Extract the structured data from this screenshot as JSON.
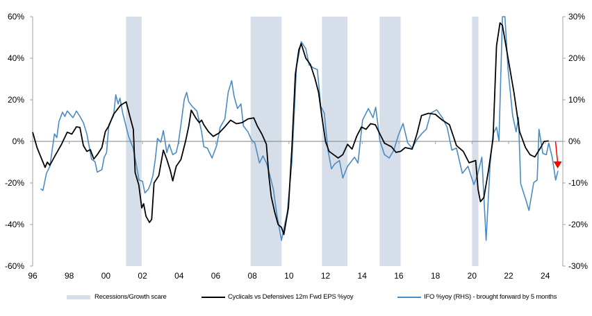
{
  "chart_data": {
    "type": "line",
    "title": "",
    "xlabel": "",
    "ylabel": "",
    "xlim": [
      1996.0,
      2024.96
    ],
    "ylim_left": [
      -60,
      60
    ],
    "ylim_right": [
      -30,
      30
    ],
    "x_ticks": [
      1996,
      1998,
      2000,
      2002,
      2004,
      2006,
      2008,
      2010,
      2012,
      2014,
      2016,
      2018,
      2020,
      2022,
      2024
    ],
    "x_tick_labels": [
      "96",
      "98",
      "00",
      "02",
      "04",
      "06",
      "08",
      "10",
      "12",
      "14",
      "16",
      "18",
      "20",
      "22",
      "24"
    ],
    "y_left_ticks": [
      60,
      40,
      20,
      0,
      -20,
      -40,
      -60
    ],
    "y_left_tick_labels": [
      "60%",
      "40%",
      "20%",
      "0%",
      "-20%",
      "-40%",
      "-60%"
    ],
    "y_right_ticks": [
      30,
      20,
      10,
      0,
      -10,
      -20,
      -30
    ],
    "y_right_tick_labels": [
      "30%",
      "20%",
      "10%",
      "0%",
      "-10%",
      "-20%",
      "-30%"
    ],
    "legend_position": "bottom",
    "recessions": {
      "name": "Recessions/Growth scare",
      "color": "#d6dfe9",
      "periods": [
        [
          2001.1,
          2001.95
        ],
        [
          2007.9,
          2009.6
        ],
        [
          2011.8,
          2013.2
        ],
        [
          2014.95,
          2016.1
        ],
        [
          2020.0,
          2020.35
        ]
      ]
    },
    "series": [
      {
        "name": "Cyclicals vs Defensives 12m Fwd EPS %yoy",
        "axis": "left",
        "color": "#000000",
        "points": [
          [
            1996.0,
            4.4
          ],
          [
            1996.24,
            -3
          ],
          [
            1996.47,
            -8
          ],
          [
            1996.68,
            -12.5
          ],
          [
            1996.8,
            -10
          ],
          [
            1996.94,
            -11.5
          ],
          [
            1997.25,
            -6.5
          ],
          [
            1997.57,
            -1.5
          ],
          [
            1997.89,
            4.4
          ],
          [
            1998.14,
            3.5
          ],
          [
            1998.39,
            7
          ],
          [
            1998.58,
            6.7
          ],
          [
            1998.77,
            -2
          ],
          [
            1998.96,
            -4.8
          ],
          [
            1999.15,
            -4
          ],
          [
            1999.34,
            -8.5
          ],
          [
            1999.53,
            -6.4
          ],
          [
            1999.78,
            -3
          ],
          [
            1999.97,
            4.7
          ],
          [
            2000.16,
            7.4
          ],
          [
            2000.42,
            13
          ],
          [
            2000.8,
            17.4
          ],
          [
            2001.11,
            19
          ],
          [
            2001.3,
            12.4
          ],
          [
            2001.5,
            5.8
          ],
          [
            2001.6,
            -15
          ],
          [
            2001.8,
            -21
          ],
          [
            2001.96,
            -32
          ],
          [
            2002.06,
            -30
          ],
          [
            2002.19,
            -36
          ],
          [
            2002.38,
            -39
          ],
          [
            2002.5,
            -37.5
          ],
          [
            2002.63,
            -20
          ],
          [
            2002.89,
            -16.5
          ],
          [
            2003.14,
            -4.2
          ],
          [
            2003.33,
            -8.7
          ],
          [
            2003.52,
            -14
          ],
          [
            2003.65,
            -19
          ],
          [
            2003.84,
            -12
          ],
          [
            2004.1,
            -8.7
          ],
          [
            2004.35,
            0
          ],
          [
            2004.53,
            7.4
          ],
          [
            2004.66,
            15
          ],
          [
            2004.91,
            11.3
          ],
          [
            2005.1,
            9
          ],
          [
            2005.23,
            10.2
          ],
          [
            2005.35,
            8
          ],
          [
            2005.6,
            4.7
          ],
          [
            2005.86,
            2.4
          ],
          [
            2006.18,
            4
          ],
          [
            2006.5,
            7
          ],
          [
            2006.81,
            10.2
          ],
          [
            2007.13,
            8.5
          ],
          [
            2007.44,
            9
          ],
          [
            2007.76,
            10.8
          ],
          [
            2008.08,
            11.3
          ],
          [
            2008.27,
            7.4
          ],
          [
            2008.52,
            3.5
          ],
          [
            2008.77,
            -1.4
          ],
          [
            2008.9,
            -16.4
          ],
          [
            2009.03,
            -26.4
          ],
          [
            2009.22,
            -34
          ],
          [
            2009.41,
            -40
          ],
          [
            2009.59,
            -41.4
          ],
          [
            2009.72,
            -44.8
          ],
          [
            2009.97,
            -32
          ],
          [
            2010.16,
            -3
          ],
          [
            2010.35,
            32.4
          ],
          [
            2010.54,
            44
          ],
          [
            2010.67,
            47
          ],
          [
            2010.92,
            40
          ],
          [
            2011.17,
            37
          ],
          [
            2011.43,
            30
          ],
          [
            2011.62,
            23.5
          ],
          [
            2011.81,
            11.3
          ],
          [
            2012.0,
            0
          ],
          [
            2012.19,
            -4.8
          ],
          [
            2012.44,
            -6.4
          ],
          [
            2012.69,
            -8
          ],
          [
            2012.94,
            -6.4
          ],
          [
            2013.2,
            -1.4
          ],
          [
            2013.45,
            -3.7
          ],
          [
            2013.7,
            2.4
          ],
          [
            2013.96,
            6.9
          ],
          [
            2014.21,
            5.8
          ],
          [
            2014.46,
            8.5
          ],
          [
            2014.72,
            8
          ],
          [
            2014.97,
            3.5
          ],
          [
            2015.22,
            -0.9
          ],
          [
            2015.6,
            -2.6
          ],
          [
            2015.85,
            -5.3
          ],
          [
            2016.1,
            -4.8
          ],
          [
            2016.35,
            -3
          ],
          [
            2016.73,
            -3.7
          ],
          [
            2016.99,
            3.5
          ],
          [
            2017.24,
            12.4
          ],
          [
            2017.62,
            13.5
          ],
          [
            2018.0,
            13
          ],
          [
            2018.38,
            10.2
          ],
          [
            2018.77,
            8
          ],
          [
            2019.15,
            -2
          ],
          [
            2019.52,
            -4.8
          ],
          [
            2019.84,
            -10.3
          ],
          [
            2020.2,
            -9.2
          ],
          [
            2020.33,
            -23
          ],
          [
            2020.46,
            -29
          ],
          [
            2020.65,
            -27
          ],
          [
            2020.9,
            -14
          ],
          [
            2021.15,
            1.3
          ],
          [
            2021.34,
            46
          ],
          [
            2021.53,
            57
          ],
          [
            2021.66,
            55.8
          ],
          [
            2021.97,
            40
          ],
          [
            2022.29,
            23.5
          ],
          [
            2022.6,
            4.7
          ],
          [
            2022.92,
            -3
          ],
          [
            2023.17,
            -6.4
          ],
          [
            2023.43,
            -7.5
          ],
          [
            2023.75,
            -3
          ],
          [
            2023.94,
            0
          ],
          [
            2024.19,
            0.2
          ]
        ]
      },
      {
        "name": "IFO %yoy (RHS) - brought forward by 5 months",
        "axis": "right",
        "color": "#4a8bc4",
        "points": [
          [
            1996.43,
            -11.4
          ],
          [
            1996.56,
            -11.8
          ],
          [
            1996.75,
            -7.7
          ],
          [
            1996.94,
            -6
          ],
          [
            1997.19,
            1.8
          ],
          [
            1997.32,
            0.9
          ],
          [
            1997.44,
            4.8
          ],
          [
            1997.63,
            7
          ],
          [
            1997.76,
            6
          ],
          [
            1997.89,
            7.3
          ],
          [
            1998.2,
            5.7
          ],
          [
            1998.39,
            7.3
          ],
          [
            1998.58,
            6
          ],
          [
            1998.77,
            4.5
          ],
          [
            1998.96,
            1.8
          ],
          [
            1999.22,
            -4.3
          ],
          [
            1999.41,
            -4.9
          ],
          [
            1999.53,
            -7.4
          ],
          [
            1999.78,
            -6.8
          ],
          [
            1999.91,
            -3.8
          ],
          [
            2000.04,
            -2.7
          ],
          [
            2000.16,
            4
          ],
          [
            2000.42,
            6.2
          ],
          [
            2000.54,
            11.2
          ],
          [
            2000.67,
            9
          ],
          [
            2000.77,
            10.4
          ],
          [
            2000.92,
            6.8
          ],
          [
            2001.05,
            4.5
          ],
          [
            2001.24,
            1.2
          ],
          [
            2001.49,
            -1.6
          ],
          [
            2001.68,
            -6
          ],
          [
            2001.81,
            -9.3
          ],
          [
            2002.0,
            -9.6
          ],
          [
            2002.13,
            -12.4
          ],
          [
            2002.32,
            -11.5
          ],
          [
            2002.44,
            -10.2
          ],
          [
            2002.57,
            -8.2
          ],
          [
            2002.7,
            -4.3
          ],
          [
            2002.82,
            0.7
          ],
          [
            2003.0,
            -0.2
          ],
          [
            2003.14,
            2.6
          ],
          [
            2003.33,
            -2.7
          ],
          [
            2003.46,
            -0.7
          ],
          [
            2003.65,
            -3.2
          ],
          [
            2003.84,
            -2.7
          ],
          [
            2003.96,
            -0.4
          ],
          [
            2004.1,
            4
          ],
          [
            2004.28,
            10.1
          ],
          [
            2004.41,
            11.8
          ],
          [
            2004.53,
            9.5
          ],
          [
            2004.72,
            8.4
          ],
          [
            2004.97,
            7.3
          ],
          [
            2005.23,
            2.3
          ],
          [
            2005.35,
            -1.3
          ],
          [
            2005.54,
            -1.6
          ],
          [
            2005.8,
            -4
          ],
          [
            2006.05,
            -1
          ],
          [
            2006.24,
            3.4
          ],
          [
            2006.5,
            5.4
          ],
          [
            2006.68,
            11.8
          ],
          [
            2006.87,
            14.6
          ],
          [
            2007.0,
            10.9
          ],
          [
            2007.19,
            7.9
          ],
          [
            2007.38,
            9
          ],
          [
            2007.51,
            3.7
          ],
          [
            2007.76,
            2.3
          ],
          [
            2007.95,
            0.4
          ],
          [
            2008.14,
            -0.4
          ],
          [
            2008.39,
            -5.2
          ],
          [
            2008.58,
            -3.5
          ],
          [
            2008.77,
            -5.2
          ],
          [
            2008.96,
            -8.2
          ],
          [
            2009.15,
            -11.6
          ],
          [
            2009.34,
            -17.7
          ],
          [
            2009.59,
            -23.8
          ],
          [
            2009.91,
            -17
          ],
          [
            2010.16,
            -4.9
          ],
          [
            2010.41,
            17.9
          ],
          [
            2010.67,
            24
          ],
          [
            2010.92,
            22.3
          ],
          [
            2011.1,
            18.4
          ],
          [
            2011.36,
            17.6
          ],
          [
            2011.55,
            17.3
          ],
          [
            2011.74,
            8.4
          ],
          [
            2011.93,
            6.8
          ],
          [
            2012.13,
            -2.1
          ],
          [
            2012.32,
            -6.6
          ],
          [
            2012.51,
            -5.4
          ],
          [
            2012.76,
            -4.6
          ],
          [
            2012.94,
            -8.8
          ],
          [
            2013.2,
            -6
          ],
          [
            2013.58,
            -3.8
          ],
          [
            2013.77,
            -5.2
          ],
          [
            2014.02,
            5.1
          ],
          [
            2014.34,
            7.9
          ],
          [
            2014.59,
            5.7
          ],
          [
            2014.74,
            8.2
          ],
          [
            2014.97,
            0.1
          ],
          [
            2015.22,
            -3.2
          ],
          [
            2015.48,
            -4
          ],
          [
            2015.73,
            -2.1
          ],
          [
            2015.98,
            1.5
          ],
          [
            2016.23,
            4.3
          ],
          [
            2016.49,
            -0.4
          ],
          [
            2016.73,
            -1.6
          ],
          [
            2016.99,
            0.4
          ],
          [
            2017.24,
            1.8
          ],
          [
            2017.5,
            2.9
          ],
          [
            2017.75,
            6.8
          ],
          [
            2018.07,
            7.6
          ],
          [
            2018.38,
            5.7
          ],
          [
            2018.64,
            3.4
          ],
          [
            2018.9,
            -2.1
          ],
          [
            2019.15,
            -1.6
          ],
          [
            2019.47,
            -7.7
          ],
          [
            2019.78,
            -6
          ],
          [
            2020.1,
            -10.4
          ],
          [
            2020.29,
            -8.2
          ],
          [
            2020.54,
            -3.8
          ],
          [
            2020.77,
            -23.8
          ],
          [
            2020.99,
            -5.4
          ],
          [
            2021.15,
            1.8
          ],
          [
            2021.34,
            3.4
          ],
          [
            2021.47,
            0.1
          ],
          [
            2021.66,
            30
          ],
          [
            2021.8,
            30
          ],
          [
            2021.97,
            17.3
          ],
          [
            2022.22,
            6.2
          ],
          [
            2022.41,
            2.3
          ],
          [
            2022.54,
            5.7
          ],
          [
            2022.66,
            -10.2
          ],
          [
            2022.92,
            -13.8
          ],
          [
            2023.11,
            -16.6
          ],
          [
            2023.37,
            -9.9
          ],
          [
            2023.56,
            -9.3
          ],
          [
            2023.66,
            2.9
          ],
          [
            2023.87,
            -2.9
          ],
          [
            2024.06,
            -3.2
          ],
          [
            2024.19,
            -0.4
          ],
          [
            2024.38,
            -3.8
          ],
          [
            2024.57,
            -9.3
          ],
          [
            2024.7,
            -7.1
          ]
        ]
      }
    ],
    "annotations": [
      {
        "type": "arrow",
        "color": "#ff0000",
        "from": [
          2024.56,
          0
        ],
        "to": [
          2024.68,
          -13
        ],
        "axis": "left"
      }
    ]
  }
}
